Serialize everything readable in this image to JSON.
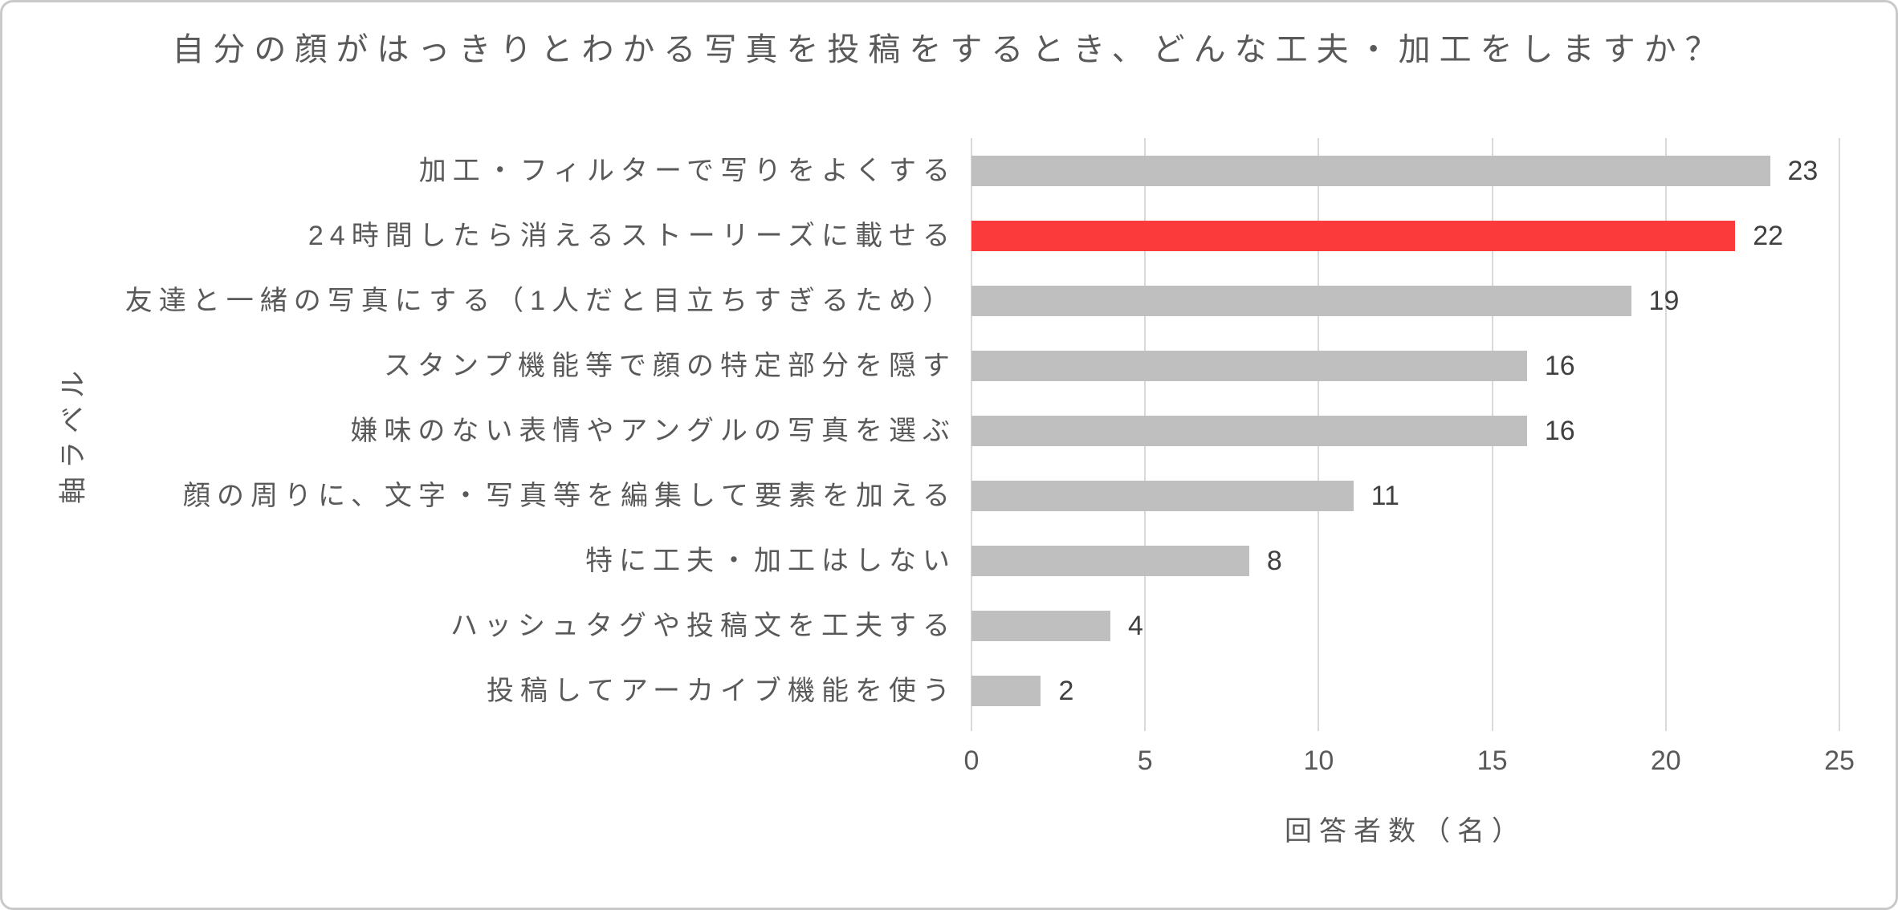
{
  "window": {
    "background": "#ffffff",
    "border_color": "#c9c9c9"
  },
  "chart_data": {
    "type": "bar",
    "orientation": "horizontal",
    "title": "自分の顔がはっきりとわかる写真を投稿をするとき、どんな工夫・加工をしますか？",
    "xlabel": "回答者数（名）",
    "ylabel": "軸ラベル",
    "categories": [
      "加工・フィルターで写りをよくする",
      "24時間したら消えるストーリーズに載せる",
      "友達と一緒の写真にする（1人だと目立ちすぎるため）",
      "スタンプ機能等で顔の特定部分を隠す",
      "嫌味のない表情やアングルの写真を選ぶ",
      "顔の周りに、文字・写真等を編集して要素を加える",
      "特に工夫・加工はしない",
      "ハッシュタグや投稿文を工夫する",
      "投稿してアーカイブ機能を使う"
    ],
    "values": [
      23,
      22,
      19,
      16,
      16,
      11,
      8,
      4,
      2
    ],
    "highlight_index": 1,
    "xlim": [
      0,
      25
    ],
    "xticks": [
      0,
      5,
      10,
      15,
      20,
      25
    ],
    "grid": true,
    "legend": false,
    "colors": {
      "bar": "#BFBFBF",
      "highlight": "#FB3B3B",
      "gridline": "#D9D9D9",
      "title_text": "#595959",
      "axis_text": "#595959",
      "value_text": "#404040"
    }
  }
}
